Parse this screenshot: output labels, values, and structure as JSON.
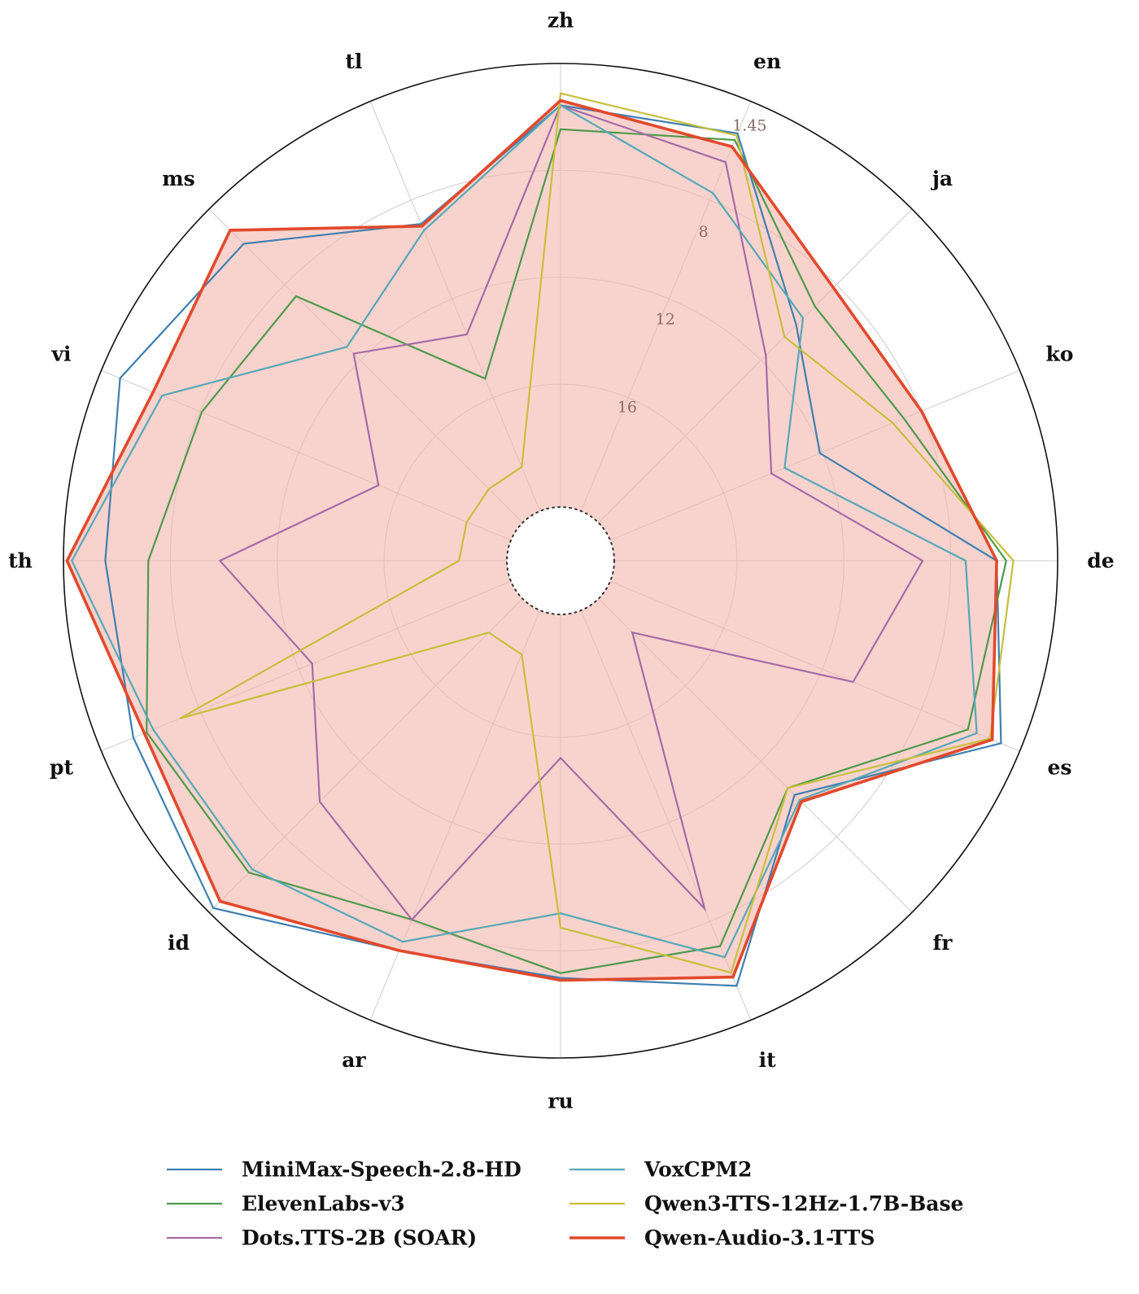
{
  "chart_data": {
    "type": "radar",
    "title": "",
    "axes": [
      "zh",
      "en",
      "ja",
      "ko",
      "de",
      "es",
      "fr",
      "it",
      "ru",
      "ar",
      "id",
      "pt",
      "th",
      "vi",
      "ms",
      "tl"
    ],
    "radial_axis": {
      "reversed": true,
      "outer_value": 1.45,
      "inner_value": 20,
      "tick_values": [
        1.45,
        8,
        12,
        16
      ],
      "tick_labels": [
        "1.45",
        "8",
        "12",
        "16"
      ]
    },
    "grid": true,
    "legend_position": "bottom",
    "series": [
      {
        "name": "MiniMax-Speech-2.8-HD",
        "color": "#3f7fb0",
        "width": 2.2,
        "values": [
          3.2,
          2.9,
          8.3,
          10.5,
          4.0,
          2.3,
          8.4,
          3.0,
          4.8,
          4.6,
          1.7,
          2.9,
          3.2,
          2.3,
          3.5,
          7.0
        ]
      },
      {
        "name": "ElevenLabs-v3",
        "color": "#4e9a4a",
        "width": 2.2,
        "values": [
          4.2,
          3.2,
          7.2,
          6.7,
          3.6,
          3.8,
          8.8,
          4.8,
          5.0,
          6.0,
          3.8,
          3.5,
          5.0,
          6.0,
          6.6,
          14.0
        ]
      },
      {
        "name": "Dots.TTS-2B (SOAR)",
        "color": "#a66aa8",
        "width": 2.2,
        "values": [
          3.2,
          4.2,
          10.1,
          12.7,
          7.1,
          9.0,
          18.0,
          6.5,
          14.0,
          6.0,
          8.0,
          11.0,
          8.0,
          14.0,
          10.0,
          12.0
        ]
      },
      {
        "name": "VoxCPM2",
        "color": "#55a8b8",
        "width": 2.2,
        "values": [
          3.2,
          5.6,
          7.9,
          12.1,
          5.3,
          3.4,
          8.1,
          4.3,
          7.5,
          5.0,
          4.0,
          3.8,
          1.8,
          4.2,
          9.6,
          7.3
        ]
      },
      {
        "name": "Qwen3-TTS-12Hz-1.7B-Base",
        "color": "#c7bf3c",
        "width": 2.2,
        "values": [
          2.7,
          3.0,
          9.0,
          7.2,
          3.3,
          2.8,
          8.8,
          3.6,
          6.9,
          18.0,
          18.0,
          5.0,
          18.0,
          18.0,
          18.0,
          18.0
        ]
      },
      {
        "name": "Qwen-Audio-3.1-TTS",
        "color": "#e2492c",
        "width": 3.6,
        "fill": "#f4b6ac",
        "values": [
          3.0,
          3.5,
          6.1,
          5.9,
          4.0,
          2.7,
          8.0,
          3.4,
          4.7,
          4.6,
          2.1,
          3.4,
          1.6,
          3.8,
          2.7,
          7.1
        ]
      }
    ]
  }
}
